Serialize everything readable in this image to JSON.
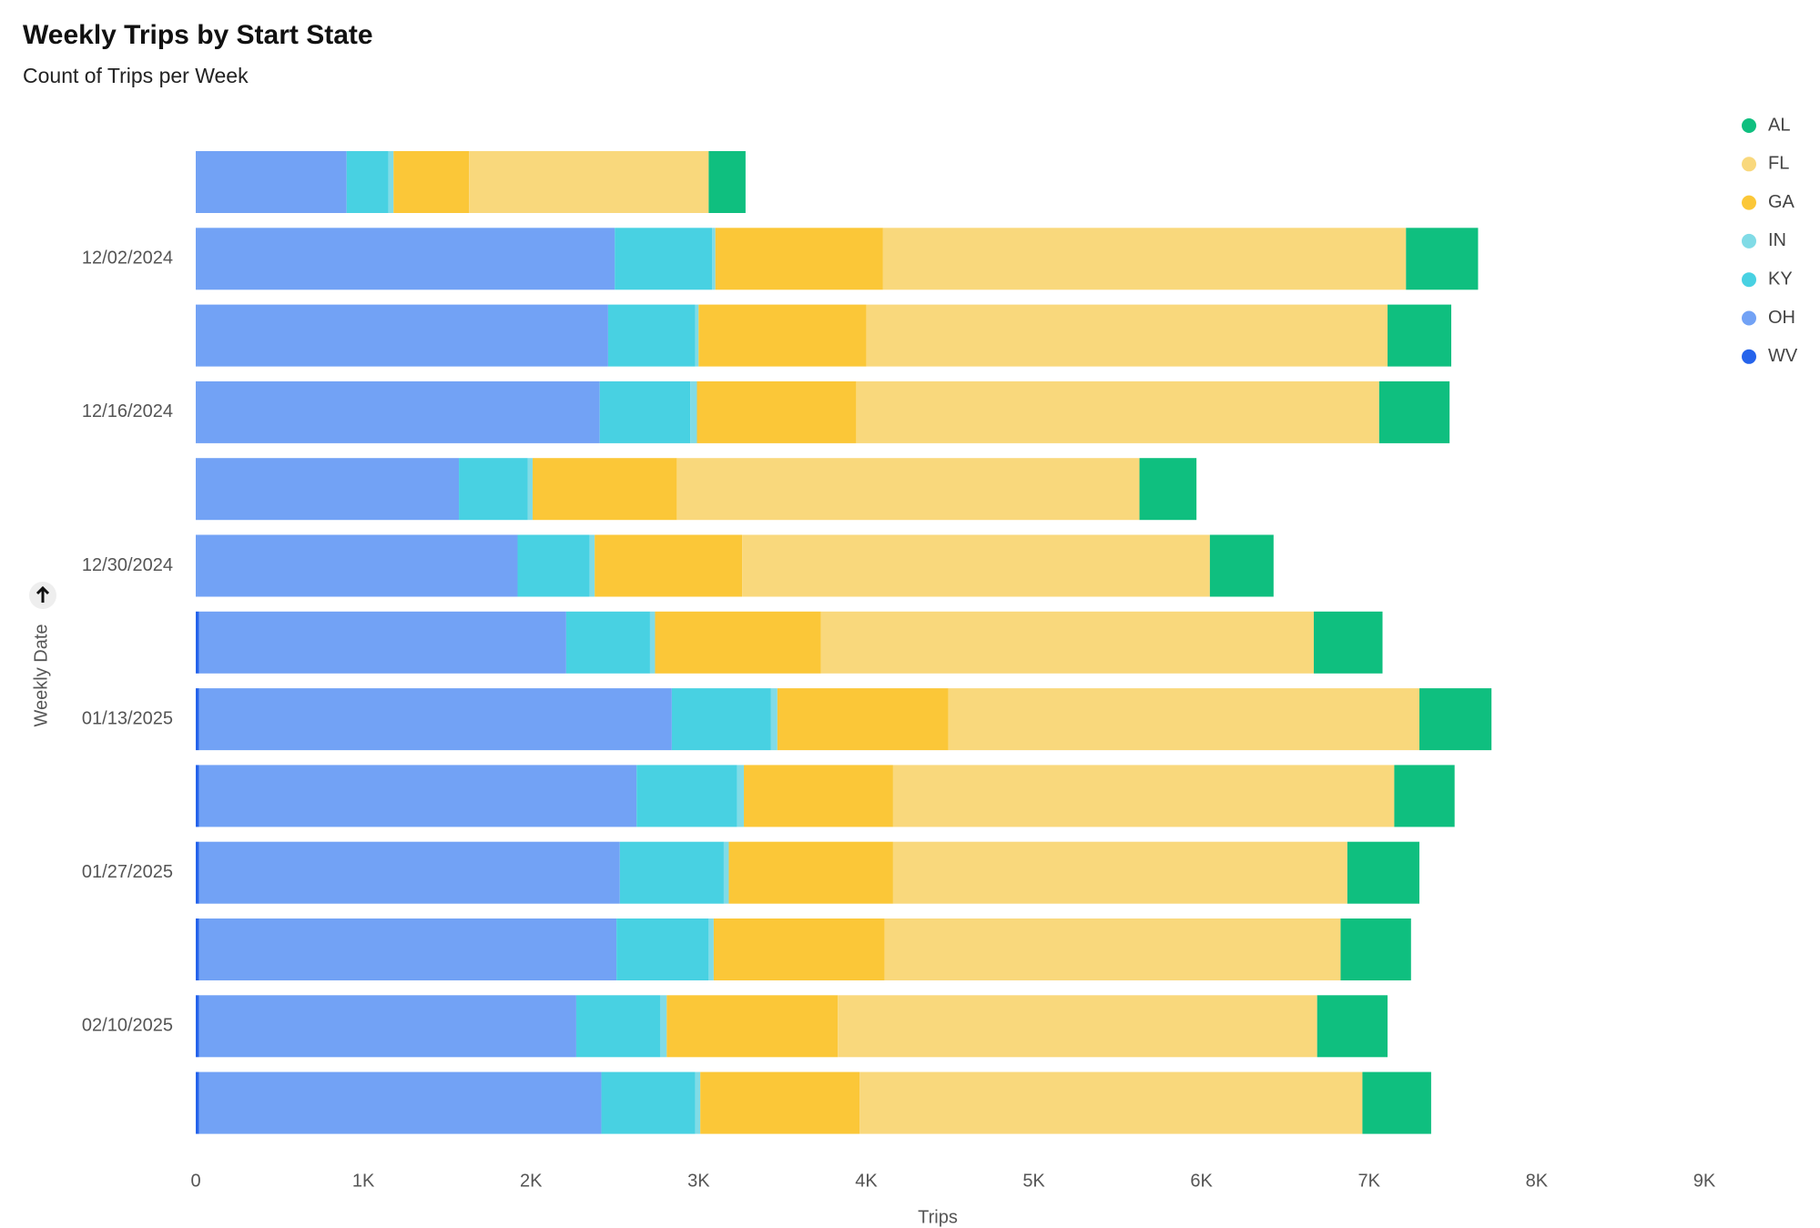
{
  "chart_data": {
    "type": "stacked-bar-horizontal",
    "title": "Weekly Trips by Start State",
    "subtitle": "Count of Trips per Week",
    "x_label": "Trips",
    "y_label": "Weekly Date",
    "categories": [
      null,
      "12/02/2024",
      null,
      "12/16/2024",
      null,
      "12/30/2024",
      null,
      "01/13/2025",
      null,
      "01/27/2025",
      null,
      "02/10/2025",
      null
    ],
    "series": [
      {
        "name": "WV",
        "color": "#2563eb",
        "values": [
          0,
          0,
          0,
          0,
          0,
          0,
          20,
          20,
          20,
          20,
          20,
          20,
          20
        ]
      },
      {
        "name": "OH",
        "color": "#72a2f5",
        "values": [
          900,
          2500,
          2460,
          2410,
          1570,
          1920,
          2190,
          2820,
          2610,
          2510,
          2490,
          2250,
          2400
        ]
      },
      {
        "name": "KY",
        "color": "#48d1e2",
        "values": [
          250,
          580,
          520,
          540,
          410,
          430,
          500,
          590,
          600,
          620,
          550,
          500,
          560
        ]
      },
      {
        "name": "IN",
        "color": "#80dbe6",
        "values": [
          30,
          20,
          20,
          40,
          30,
          30,
          30,
          40,
          40,
          30,
          30,
          40,
          30
        ]
      },
      {
        "name": "GA",
        "color": "#fbc738",
        "values": [
          450,
          1000,
          1000,
          950,
          860,
          880,
          990,
          1020,
          890,
          980,
          1020,
          1020,
          950
        ]
      },
      {
        "name": "FL",
        "color": "#f9d87c",
        "values": [
          1430,
          3120,
          3110,
          3120,
          2760,
          2790,
          2940,
          2810,
          2990,
          2710,
          2720,
          2860,
          3000
        ]
      },
      {
        "name": "AL",
        "color": "#0fbf7f",
        "values": [
          220,
          430,
          380,
          420,
          340,
          380,
          410,
          430,
          360,
          430,
          420,
          420,
          410
        ]
      }
    ],
    "xlim": [
      0,
      9000
    ],
    "xticks": [
      0,
      {
        "value": 1000,
        "label": "1K"
      },
      {
        "value": 2000,
        "label": "2K"
      },
      {
        "value": 3000,
        "label": "3K"
      },
      {
        "value": 4000,
        "label": "4K"
      },
      {
        "value": 5000,
        "label": "5K"
      },
      {
        "value": 6000,
        "label": "6K"
      },
      {
        "value": 7000,
        "label": "7K"
      },
      {
        "value": 8000,
        "label": "8K"
      },
      {
        "value": 9000,
        "label": "9K"
      }
    ]
  }
}
